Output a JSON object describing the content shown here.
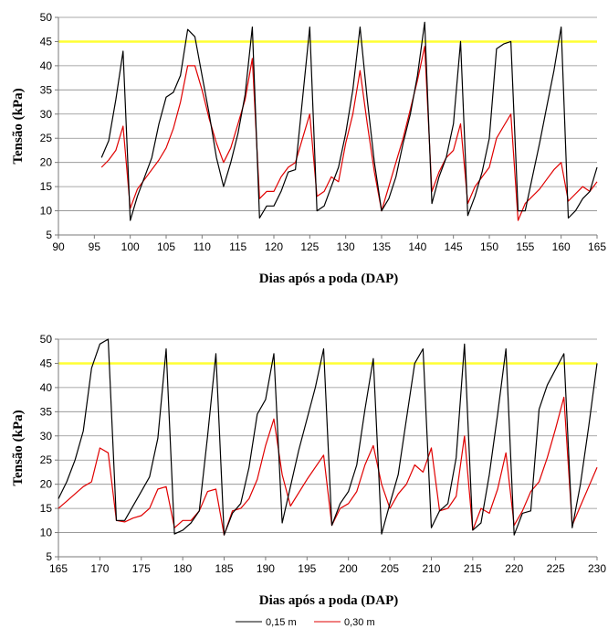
{
  "colors": {
    "depth_015": "#000000",
    "depth_030": "#e00000",
    "threshold": "#ffff33"
  },
  "chart_data": [
    {
      "type": "line",
      "xlabel": "Dias após a poda (DAP)",
      "ylabel": "Tensão (kPa)",
      "xlim": [
        90,
        165
      ],
      "ylim": [
        5,
        50
      ],
      "xticks": [
        90,
        95,
        100,
        105,
        110,
        115,
        120,
        125,
        130,
        135,
        140,
        145,
        150,
        155,
        160,
        165
      ],
      "yticks": [
        5,
        10,
        15,
        20,
        25,
        30,
        35,
        40,
        45,
        50
      ],
      "threshold": 45,
      "series": [
        {
          "name": "0,15 m",
          "points": [
            [
              96,
              21
            ],
            [
              97,
              24.5
            ],
            [
              98,
              33
            ],
            [
              99,
              43
            ],
            [
              100,
              8
            ],
            [
              101,
              13
            ],
            [
              103,
              21
            ],
            [
              104,
              28
            ],
            [
              105,
              33.5
            ],
            [
              106,
              34.5
            ],
            [
              107,
              38
            ],
            [
              108,
              47.5
            ],
            [
              109,
              46
            ],
            [
              110,
              38
            ],
            [
              111,
              30
            ],
            [
              112,
              21
            ],
            [
              113,
              15
            ],
            [
              114,
              20
            ],
            [
              115,
              26
            ],
            [
              116,
              34
            ],
            [
              117,
              48
            ],
            [
              118,
              8.5
            ],
            [
              119,
              11
            ],
            [
              120,
              11
            ],
            [
              121,
              14
            ],
            [
              122,
              18
            ],
            [
              123,
              18.5
            ],
            [
              125,
              48
            ],
            [
              126,
              10
            ],
            [
              127,
              11
            ],
            [
              128,
              15
            ],
            [
              129,
              19
            ],
            [
              130,
              26
            ],
            [
              131,
              35
            ],
            [
              132,
              48
            ],
            [
              133,
              33
            ],
            [
              134,
              20
            ],
            [
              135,
              10
            ],
            [
              136,
              12.5
            ],
            [
              137,
              17
            ],
            [
              138,
              24
            ],
            [
              139,
              30
            ],
            [
              140,
              38
            ],
            [
              141,
              49
            ],
            [
              142,
              11.5
            ],
            [
              143,
              17
            ],
            [
              144,
              21
            ],
            [
              145,
              28
            ],
            [
              146,
              45
            ],
            [
              147,
              9
            ],
            [
              148,
              13
            ],
            [
              149,
              18
            ],
            [
              150,
              25
            ],
            [
              151,
              43.5
            ],
            [
              152,
              44.5
            ],
            [
              153,
              45
            ],
            [
              154,
              10
            ],
            [
              155,
              10
            ],
            [
              156,
              17
            ],
            [
              157,
              24
            ],
            [
              158,
              31.5
            ],
            [
              159,
              39
            ],
            [
              160,
              48
            ],
            [
              161,
              8.5
            ],
            [
              162,
              10
            ],
            [
              163,
              12.5
            ],
            [
              164,
              14
            ],
            [
              165,
              19
            ]
          ]
        },
        {
          "name": "0,30 m",
          "points": [
            [
              96,
              19
            ],
            [
              97,
              20.5
            ],
            [
              98,
              22.5
            ],
            [
              99,
              27.5
            ],
            [
              100,
              10.5
            ],
            [
              101,
              14.5
            ],
            [
              102,
              16.5
            ],
            [
              104,
              20.5
            ],
            [
              105,
              23
            ],
            [
              106,
              27
            ],
            [
              107,
              32.5
            ],
            [
              108,
              40
            ],
            [
              109,
              40
            ],
            [
              110,
              35
            ],
            [
              111,
              29
            ],
            [
              112,
              24
            ],
            [
              113,
              20
            ],
            [
              114,
              23
            ],
            [
              115,
              28
            ],
            [
              116,
              33
            ],
            [
              117,
              41.5
            ],
            [
              118,
              12.5
            ],
            [
              119,
              14
            ],
            [
              120,
              14
            ],
            [
              121,
              17
            ],
            [
              122,
              19
            ],
            [
              123,
              20
            ],
            [
              125,
              30
            ],
            [
              126,
              13
            ],
            [
              127,
              14
            ],
            [
              128,
              17
            ],
            [
              129,
              16
            ],
            [
              130,
              24
            ],
            [
              131,
              30
            ],
            [
              132,
              39
            ],
            [
              133,
              28
            ],
            [
              134,
              18
            ],
            [
              135,
              10
            ],
            [
              136,
              15
            ],
            [
              137,
              20
            ],
            [
              138,
              25
            ],
            [
              139,
              31
            ],
            [
              140,
              37
            ],
            [
              141,
              44
            ],
            [
              142,
              14
            ],
            [
              143,
              18
            ],
            [
              144,
              21
            ],
            [
              145,
              22.5
            ],
            [
              146,
              28
            ],
            [
              147,
              11.5
            ],
            [
              148,
              15
            ],
            [
              149,
              17
            ],
            [
              150,
              19
            ],
            [
              151,
              25
            ],
            [
              152,
              27.5
            ],
            [
              153,
              30
            ],
            [
              154,
              8
            ],
            [
              155,
              11.5
            ],
            [
              156,
              13
            ],
            [
              157,
              14.5
            ],
            [
              158,
              16.5
            ],
            [
              159,
              18.5
            ],
            [
              160,
              20
            ],
            [
              161,
              12
            ],
            [
              162,
              13.5
            ],
            [
              163,
              15
            ],
            [
              164,
              14
            ],
            [
              165,
              16
            ]
          ]
        }
      ]
    },
    {
      "type": "line",
      "xlabel": "Dias após a poda (DAP)",
      "ylabel": "Tensão (kPa)",
      "xlim": [
        165,
        230
      ],
      "ylim": [
        5,
        50
      ],
      "xticks": [
        165,
        170,
        175,
        180,
        185,
        190,
        195,
        200,
        205,
        210,
        215,
        220,
        225,
        230
      ],
      "yticks": [
        5,
        10,
        15,
        20,
        25,
        30,
        35,
        40,
        45,
        50
      ],
      "threshold": 45,
      "series": [
        {
          "name": "0,15 m",
          "points": [
            [
              165,
              17
            ],
            [
              166,
              20.5
            ],
            [
              167,
              25
            ],
            [
              168,
              31
            ],
            [
              169,
              44
            ],
            [
              170,
              49
            ],
            [
              171,
              50
            ],
            [
              172,
              12.5
            ],
            [
              173,
              12.5
            ],
            [
              175,
              18.5
            ],
            [
              176,
              21.5
            ],
            [
              177,
              29.5
            ],
            [
              178,
              48
            ],
            [
              179,
              9.7
            ],
            [
              180,
              10.5
            ],
            [
              181,
              12
            ],
            [
              182,
              14.5
            ],
            [
              183,
              30
            ],
            [
              184,
              47
            ],
            [
              185,
              9.5
            ],
            [
              186,
              14
            ],
            [
              187,
              16
            ],
            [
              188,
              23.5
            ],
            [
              189,
              34.5
            ],
            [
              190,
              37.5
            ],
            [
              191,
              47
            ],
            [
              192,
              12
            ],
            [
              194,
              27
            ],
            [
              196,
              40
            ],
            [
              197,
              48
            ],
            [
              198,
              11.5
            ],
            [
              199,
              16
            ],
            [
              200,
              18.5
            ],
            [
              201,
              24
            ],
            [
              202,
              35.5
            ],
            [
              203,
              46
            ],
            [
              204,
              9.7
            ],
            [
              205,
              16
            ],
            [
              206,
              22
            ],
            [
              207,
              33.5
            ],
            [
              208,
              45
            ],
            [
              209,
              48
            ],
            [
              210,
              11
            ],
            [
              211,
              14.5
            ],
            [
              212,
              16
            ],
            [
              213,
              25.5
            ],
            [
              214,
              49
            ],
            [
              215,
              10.5
            ],
            [
              216,
              12
            ],
            [
              217,
              22
            ],
            [
              218,
              34.5
            ],
            [
              219,
              48
            ],
            [
              220,
              9.5
            ],
            [
              221,
              14
            ],
            [
              222,
              14.5
            ],
            [
              223,
              35.5
            ],
            [
              224,
              40.5
            ],
            [
              226,
              47
            ],
            [
              227,
              11
            ],
            [
              228,
              20
            ],
            [
              229,
              32
            ],
            [
              230,
              45
            ]
          ]
        },
        {
          "name": "0,30 m",
          "points": [
            [
              165,
              15
            ],
            [
              166,
              16.5
            ],
            [
              167,
              18
            ],
            [
              168,
              19.5
            ],
            [
              169,
              20.5
            ],
            [
              170,
              27.5
            ],
            [
              171,
              26.5
            ],
            [
              172,
              12.5
            ],
            [
              173,
              12.2
            ],
            [
              174,
              13
            ],
            [
              175,
              13.5
            ],
            [
              176,
              15
            ],
            [
              177,
              19
            ],
            [
              178,
              19.5
            ],
            [
              179,
              11
            ],
            [
              180,
              12.5
            ],
            [
              181,
              12.5
            ],
            [
              182,
              14.5
            ],
            [
              183,
              18.5
            ],
            [
              184,
              19
            ],
            [
              185,
              9.5
            ],
            [
              186,
              14.5
            ],
            [
              187,
              15
            ],
            [
              188,
              17
            ],
            [
              189,
              21
            ],
            [
              190,
              28
            ],
            [
              191,
              33.5
            ],
            [
              192,
              22
            ],
            [
              193,
              15.5
            ],
            [
              195,
              21
            ],
            [
              197,
              26
            ],
            [
              198,
              11.5
            ],
            [
              199,
              15
            ],
            [
              200,
              16
            ],
            [
              201,
              18.5
            ],
            [
              202,
              24
            ],
            [
              203,
              28
            ],
            [
              204,
              20
            ],
            [
              205,
              15
            ],
            [
              206,
              18
            ],
            [
              207,
              20
            ],
            [
              208,
              24
            ],
            [
              209,
              22.5
            ],
            [
              210,
              27.5
            ],
            [
              211,
              14.5
            ],
            [
              212,
              15
            ],
            [
              213,
              17.5
            ],
            [
              214,
              30
            ],
            [
              215,
              10.5
            ],
            [
              216,
              15
            ],
            [
              217,
              14
            ],
            [
              218,
              19
            ],
            [
              219,
              26.5
            ],
            [
              220,
              11.5
            ],
            [
              221,
              14.5
            ],
            [
              222,
              18.5
            ],
            [
              223,
              20.5
            ],
            [
              224,
              25.5
            ],
            [
              225,
              31.5
            ],
            [
              226,
              38
            ],
            [
              227,
              11.5
            ],
            [
              228,
              15.5
            ],
            [
              229,
              19.5
            ],
            [
              230,
              23.5
            ]
          ]
        }
      ]
    }
  ],
  "legend": [
    {
      "label": "0,15 m",
      "color": "#000000"
    },
    {
      "label": "0,30 m",
      "color": "#e00000"
    }
  ]
}
